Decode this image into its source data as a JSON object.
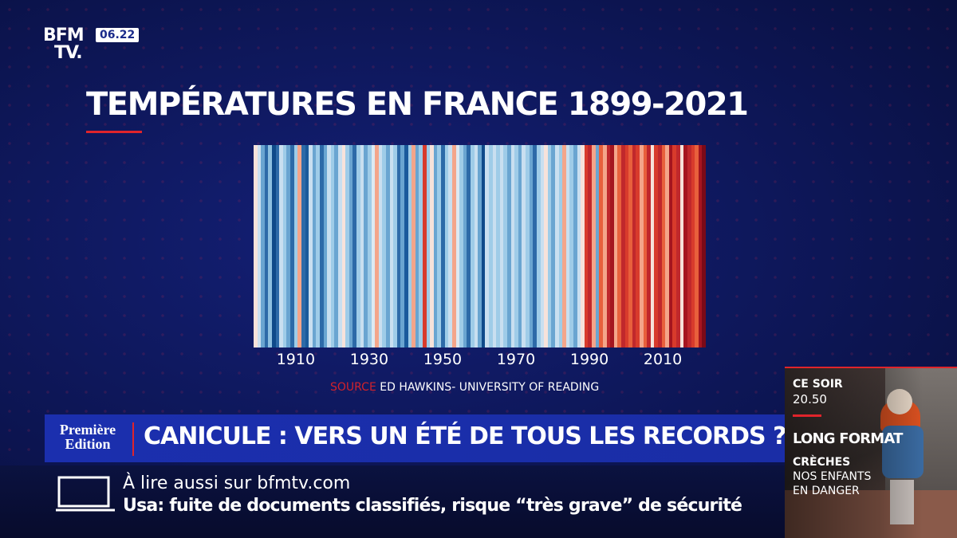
{
  "channel": {
    "logo_line1": "BFM",
    "logo_line2": "TV.",
    "time": "06.22"
  },
  "chart_data": {
    "type": "heatmap",
    "title": "TEMPÉRATURES EN FRANCE 1899-2021",
    "x_start": 1899,
    "x_end": 2021,
    "x_ticks": [
      "1910",
      "1930",
      "1950",
      "1970",
      "1990",
      "2010"
    ],
    "colors": [
      "#f7e2da",
      "#c9dff0",
      "#6aa5d1",
      "#2d6aa8",
      "#8ec0e0",
      "#0f4a8a",
      "#2d6aa8",
      "#c9dff0",
      "#9fcce8",
      "#6aa5d1",
      "#2d6aa8",
      "#9fcce8",
      "#f4a58a",
      "#2d6aa8",
      "#1a5a9c",
      "#c9dff0",
      "#6aa5d1",
      "#9fcce8",
      "#2d6aa8",
      "#6aa5d1",
      "#c9dff0",
      "#9fcce8",
      "#6aa5d1",
      "#c9dff0",
      "#f7e2da",
      "#9fcce8",
      "#6aa5d1",
      "#2d6aa8",
      "#9fcce8",
      "#c9dff0",
      "#6aa5d1",
      "#9fcce8",
      "#dde9f2",
      "#f4a58a",
      "#c9dff0",
      "#9fcce8",
      "#6aa5d1",
      "#c9dff0",
      "#9fcce8",
      "#2d6aa8",
      "#6aa5d1",
      "#1a5a9c",
      "#9fcce8",
      "#f4a58a",
      "#6aa5d1",
      "#9fcce8",
      "#d83b2c",
      "#9fcce8",
      "#f7e2da",
      "#6aa5d1",
      "#9fcce8",
      "#2d6aa8",
      "#9fcce8",
      "#c9dff0",
      "#f4a58a",
      "#dde9f2",
      "#9fcce8",
      "#6aa5d1",
      "#2d6aa8",
      "#9fcce8",
      "#c9dff0",
      "#6aa5d1",
      "#0f4a8a",
      "#c9dff0",
      "#9fcce8",
      "#c9dff0",
      "#9fcce8",
      "#c9dff0",
      "#9fcce8",
      "#6aa5d1",
      "#c9dff0",
      "#9fcce8",
      "#6aa5d1",
      "#c9dff0",
      "#9fcce8",
      "#6aa5d1",
      "#2d6aa8",
      "#9fcce8",
      "#c9dff0",
      "#f7e2da",
      "#9fcce8",
      "#6aa5d1",
      "#c9dff0",
      "#9fcce8",
      "#f4a58a",
      "#c9dff0",
      "#9fcce8",
      "#6aa5d1",
      "#c9dff0",
      "#f7e2da",
      "#d83b2c",
      "#c0282c",
      "#f4a58a",
      "#6aa5d1",
      "#e8603c",
      "#f4a58a",
      "#c0282c",
      "#a5151f",
      "#f4a58a",
      "#e8603c",
      "#c0282c",
      "#d83b2c",
      "#e8603c",
      "#c0282c",
      "#d83b2c",
      "#f4a58a",
      "#e8603c",
      "#c0282c",
      "#f7e2da",
      "#d83b2c",
      "#c0282c",
      "#e8603c",
      "#f4a58a",
      "#a5151f",
      "#d83b2c",
      "#c0282c",
      "#f7e2da",
      "#a5151f",
      "#c0282c",
      "#d83b2c",
      "#e8603c",
      "#a5151f",
      "#7a0a18"
    ],
    "source_label": "SOURCE",
    "source_text": "ED HAWKINS- UNIVERSITY OF READING"
  },
  "lower_third": {
    "show_line1": "Première",
    "show_line2": "Edition",
    "headline": "CANICULE : VERS UN ÉTÉ DE TOUS LES RECORDS ?"
  },
  "ticker": {
    "intro": "À lire aussi sur bfmtv.com",
    "news": "Usa: fuite de documents classifiés, risque “très grave” de sécurité"
  },
  "promo": {
    "ce_soir": "CE SOIR",
    "time": "20.50",
    "format": "LONG FORMAT",
    "creches": "CRÈCHES",
    "line2": "NOS ENFANTS",
    "line3": "EN DANGER"
  }
}
